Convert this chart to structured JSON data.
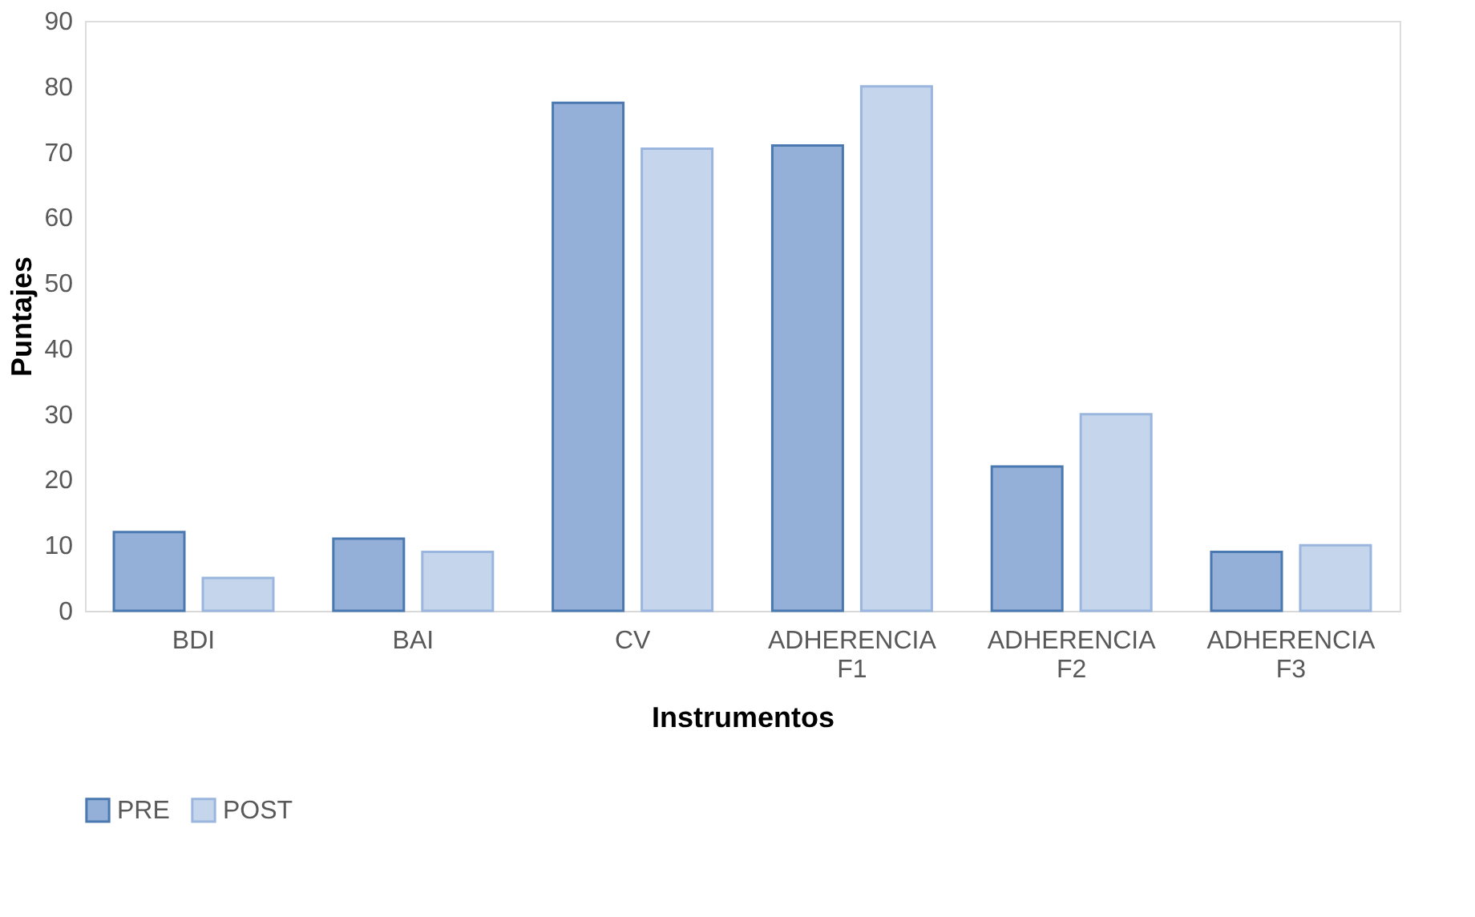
{
  "chart_data": {
    "type": "bar",
    "xlabel": "Instrumentos",
    "ylabel": "Puntajes",
    "categories": [
      "BDI",
      "BAI",
      "CV",
      "ADHERENCIA F1",
      "ADHERENCIA F2",
      "ADHERENCIA F3"
    ],
    "series": [
      {
        "name": "PRE",
        "color": "#94b0d8",
        "values": [
          12,
          11,
          77.5,
          71,
          22,
          9
        ]
      },
      {
        "name": "POST",
        "color": "#c5d5ec",
        "values": [
          5,
          9,
          70.5,
          80,
          30,
          10
        ]
      }
    ],
    "ylim": [
      0,
      90
    ],
    "yticks": [
      0,
      10,
      20,
      30,
      40,
      50,
      60,
      70,
      80,
      90
    ],
    "grid": false,
    "legend": "bottom"
  }
}
